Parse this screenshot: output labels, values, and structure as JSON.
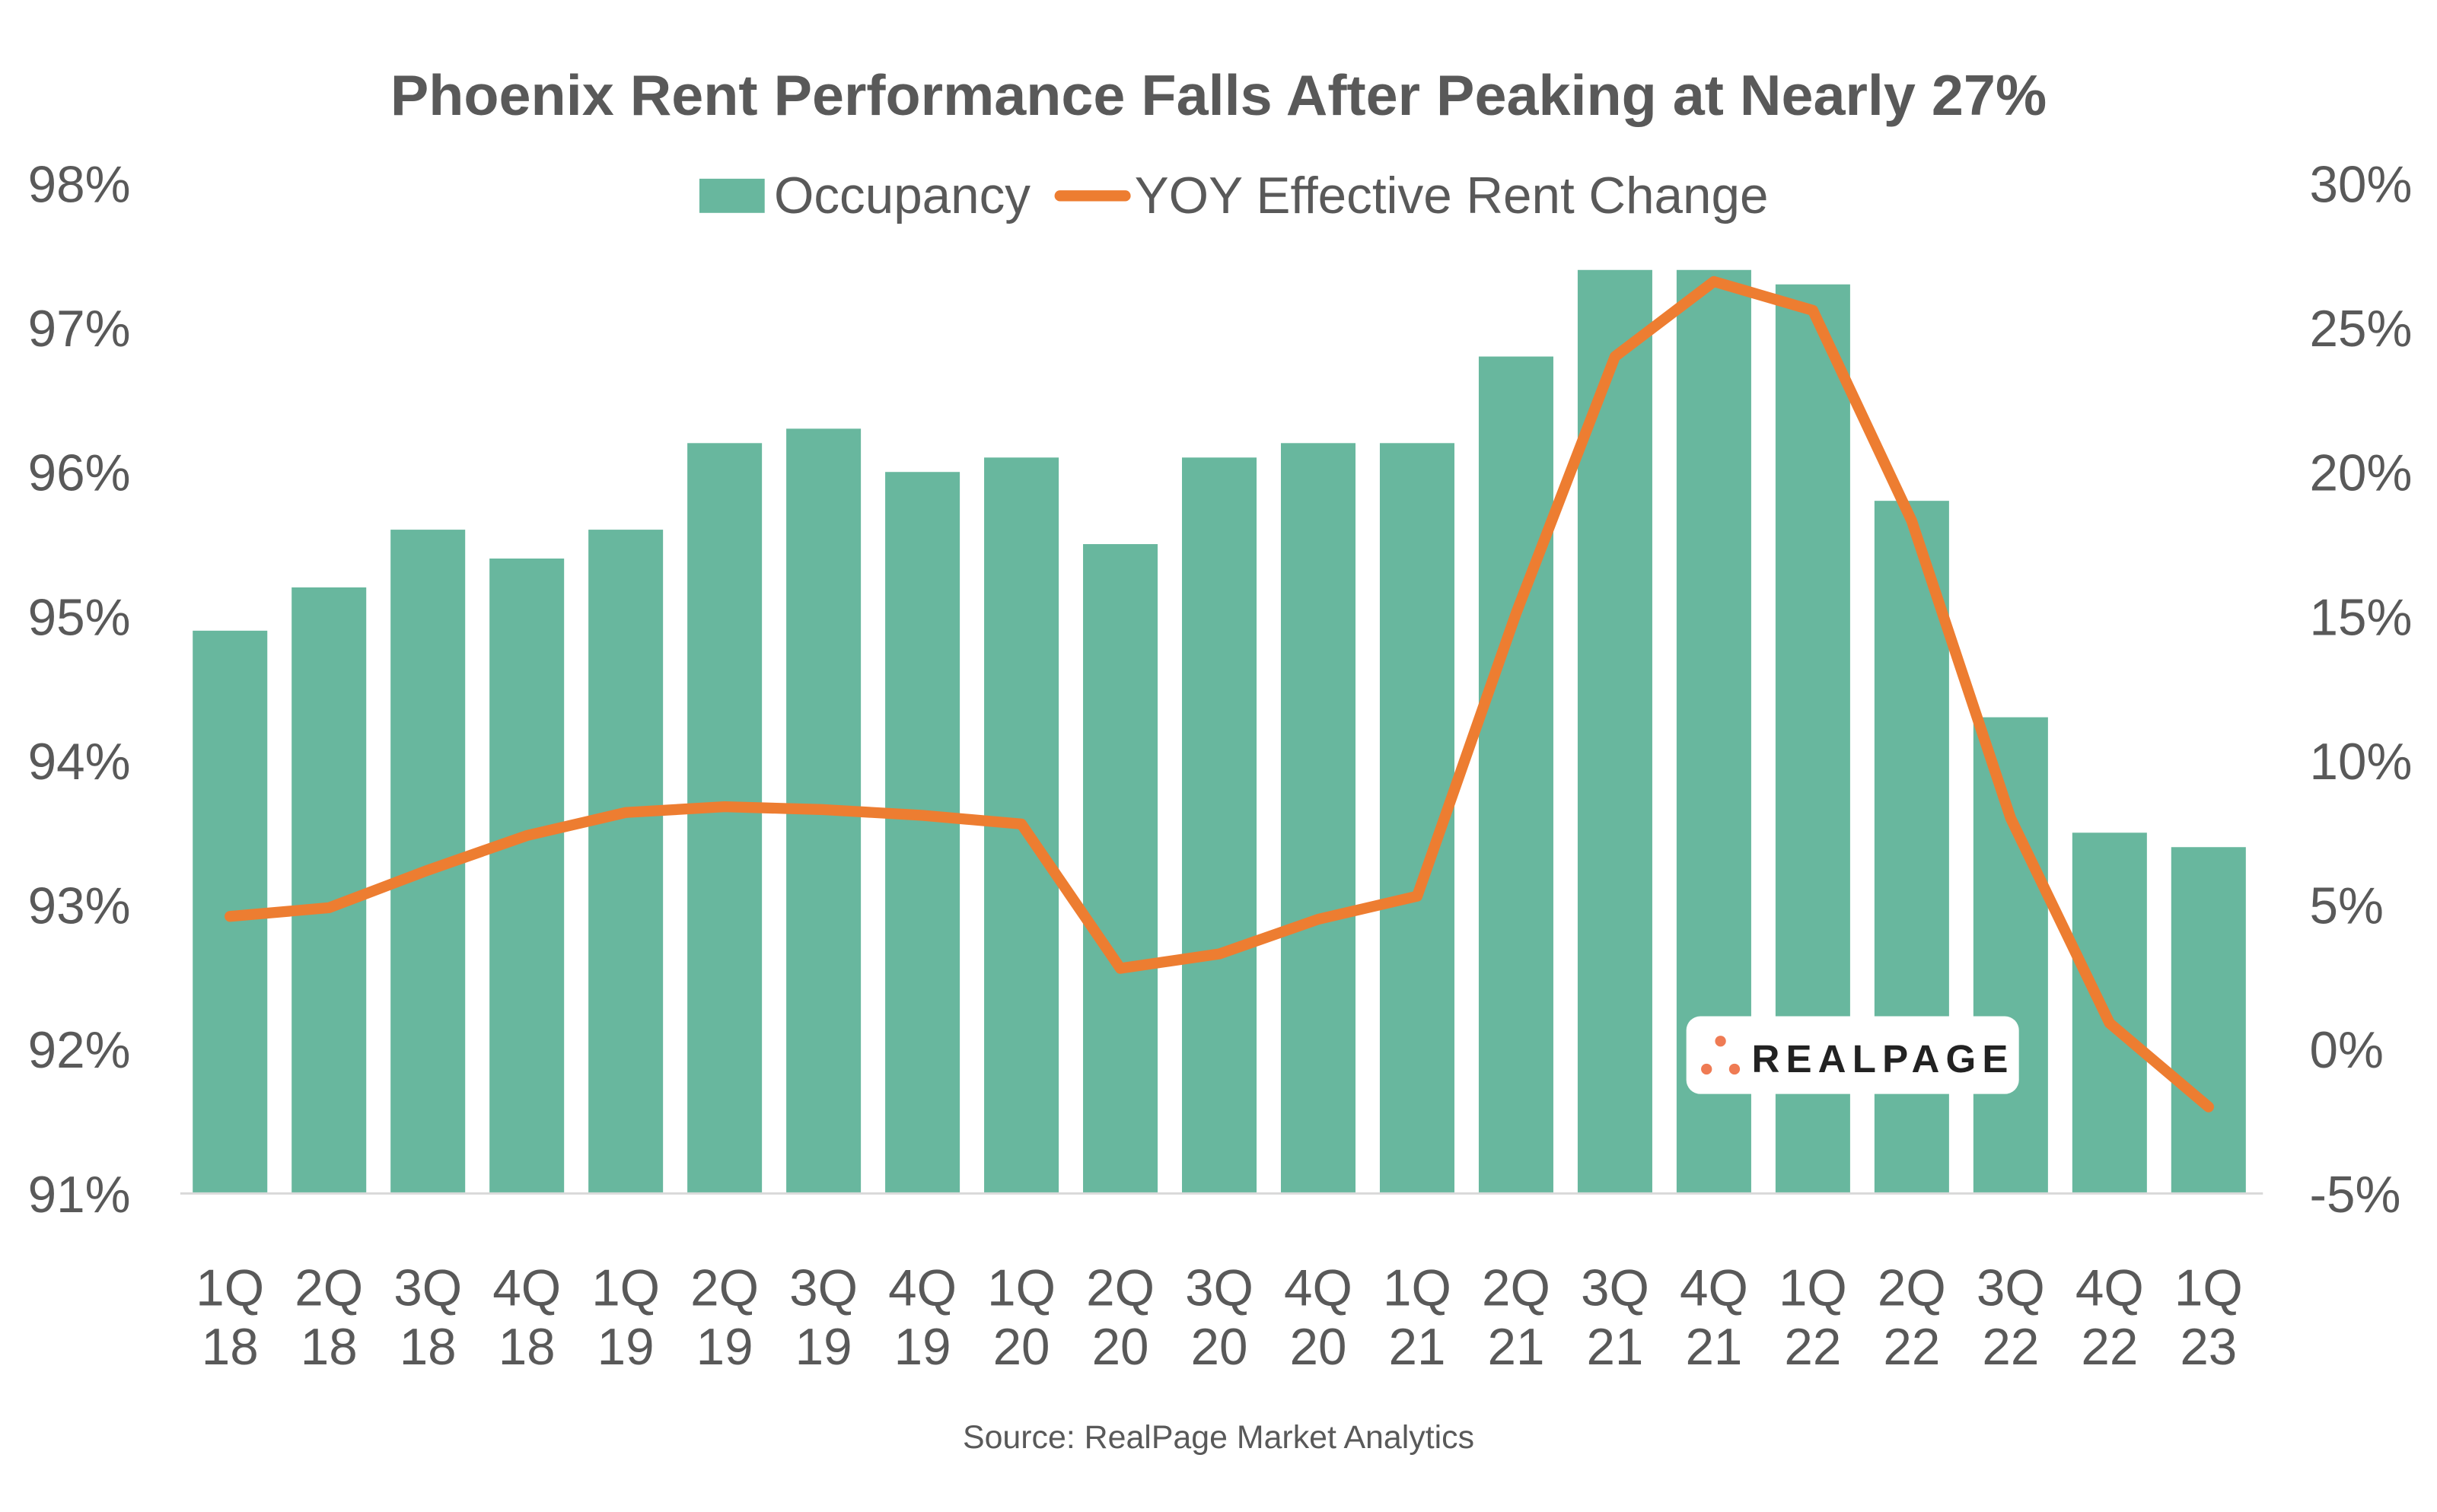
{
  "chart_data": {
    "type": "bar+line",
    "title": "Phoenix Rent Performance Falls After Peaking at Nearly 27%",
    "source": "Source: RealPage Market Analytics",
    "logo_text": "REALPAGE",
    "legend_placement": "top-center",
    "grid": false,
    "categories": [
      [
        "1Q",
        "18"
      ],
      [
        "2Q",
        "18"
      ],
      [
        "3Q",
        "18"
      ],
      [
        "4Q",
        "18"
      ],
      [
        "1Q",
        "19"
      ],
      [
        "2Q",
        "19"
      ],
      [
        "3Q",
        "19"
      ],
      [
        "4Q",
        "19"
      ],
      [
        "1Q",
        "20"
      ],
      [
        "2Q",
        "20"
      ],
      [
        "3Q",
        "20"
      ],
      [
        "4Q",
        "20"
      ],
      [
        "1Q",
        "21"
      ],
      [
        "2Q",
        "21"
      ],
      [
        "3Q",
        "21"
      ],
      [
        "4Q",
        "21"
      ],
      [
        "1Q",
        "22"
      ],
      [
        "2Q",
        "22"
      ],
      [
        "3Q",
        "22"
      ],
      [
        "4Q",
        "22"
      ],
      [
        "1Q",
        "23"
      ]
    ],
    "left_axis": {
      "ylim": [
        91,
        98
      ],
      "ticks": [
        "91%",
        "92%",
        "93%",
        "94%",
        "95%",
        "96%",
        "97%",
        "98%"
      ]
    },
    "right_axis": {
      "ylim": [
        -5,
        30
      ],
      "ticks": [
        "-5%",
        "0%",
        "5%",
        "10%",
        "15%",
        "20%",
        "25%",
        "30%"
      ]
    },
    "series": [
      {
        "name": "Occupancy",
        "type": "bar",
        "axis": "left",
        "color": "#68B79E",
        "values": [
          94.9,
          95.2,
          95.6,
          95.4,
          95.6,
          96.2,
          96.3,
          96.0,
          96.1,
          95.5,
          96.1,
          96.2,
          96.2,
          96.8,
          97.4,
          97.4,
          97.3,
          95.8,
          94.3,
          93.5,
          93.4
        ]
      },
      {
        "name": "YOY Effective Rent Change",
        "type": "line",
        "axis": "right",
        "color": "#ED7D31",
        "values": [
          4.6,
          4.9,
          6.2,
          7.4,
          8.2,
          8.4,
          8.3,
          8.1,
          7.8,
          2.8,
          3.3,
          4.5,
          5.3,
          15.1,
          24.0,
          26.6,
          25.6,
          18.3,
          8.0,
          0.9,
          -2.0
        ]
      }
    ]
  }
}
